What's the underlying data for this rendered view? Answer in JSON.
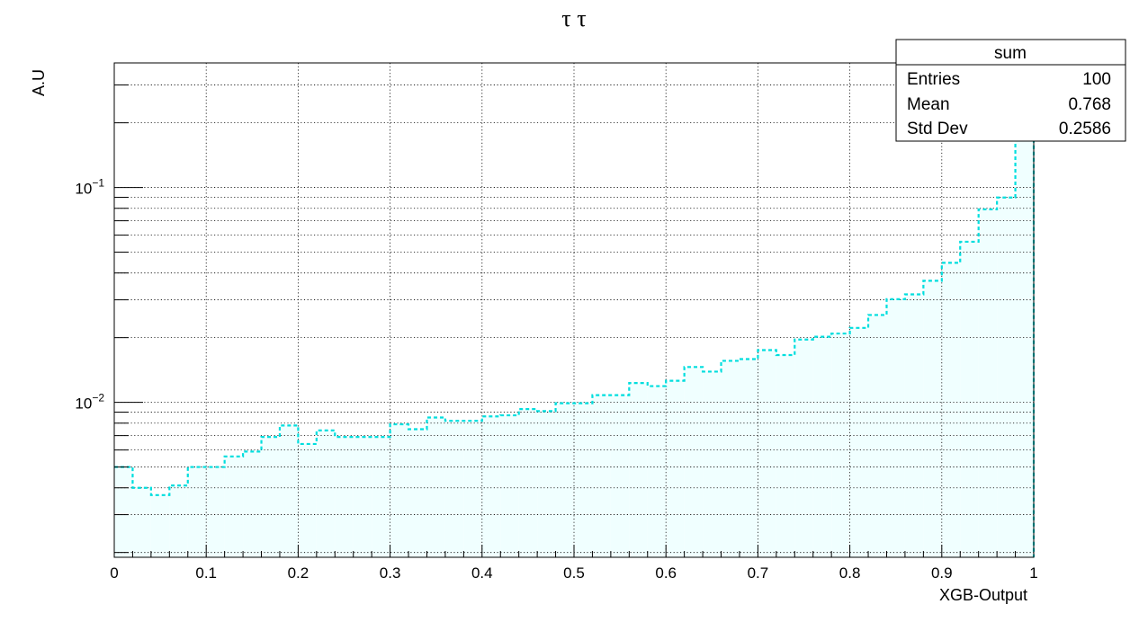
{
  "chart_data": {
    "type": "histogram",
    "title": "τ τ",
    "xlabel": "XGB-Output",
    "ylabel": "A.U",
    "xlim": [
      0,
      1
    ],
    "ylim": [
      0.0019,
      0.38
    ],
    "y_scale": "log",
    "grid": true,
    "x_ticks": [
      "0",
      "0.1",
      "0.2",
      "0.3",
      "0.4",
      "0.5",
      "0.6",
      "0.7",
      "0.8",
      "0.9",
      "1"
    ],
    "y_tick_labels": [
      {
        "value": 0.01,
        "base": "10",
        "exponent": "−2"
      },
      {
        "value": 0.1,
        "base": "10",
        "exponent": "−1"
      }
    ],
    "bin_edges": [
      0,
      0.02,
      0.04,
      0.06,
      0.08,
      0.1,
      0.12,
      0.14,
      0.16,
      0.18,
      0.2,
      0.22,
      0.24,
      0.26,
      0.28,
      0.3,
      0.32,
      0.34,
      0.36,
      0.38,
      0.4,
      0.42,
      0.44,
      0.46,
      0.48,
      0.5,
      0.52,
      0.54,
      0.56,
      0.58,
      0.6,
      0.62,
      0.64,
      0.66,
      0.68,
      0.7,
      0.72,
      0.74,
      0.76,
      0.78,
      0.8,
      0.82,
      0.84,
      0.86,
      0.88,
      0.9,
      0.92,
      0.94,
      0.96,
      0.98,
      1.0
    ],
    "values": [
      0.005,
      0.004,
      0.0037,
      0.0041,
      0.005,
      0.005,
      0.0056,
      0.0059,
      0.0069,
      0.0078,
      0.0064,
      0.0074,
      0.0069,
      0.0069,
      0.0069,
      0.0079,
      0.0075,
      0.0085,
      0.0082,
      0.0082,
      0.0086,
      0.0087,
      0.0093,
      0.0091,
      0.0099,
      0.0099,
      0.0108,
      0.0108,
      0.0123,
      0.0119,
      0.0126,
      0.0146,
      0.0139,
      0.0156,
      0.0159,
      0.0175,
      0.0166,
      0.0196,
      0.0202,
      0.0209,
      0.0222,
      0.0255,
      0.0302,
      0.0318,
      0.0368,
      0.0446,
      0.0559,
      0.0791,
      0.0898,
      0.168
    ],
    "line_color": "#00dede",
    "fill_color": "#f0ffff",
    "stats": {
      "name": "sum",
      "rows": [
        {
          "label": "Entries",
          "value": "100"
        },
        {
          "label": "Mean",
          "value": "0.768"
        },
        {
          "label": "Std Dev",
          "value": "0.2586"
        }
      ]
    }
  }
}
